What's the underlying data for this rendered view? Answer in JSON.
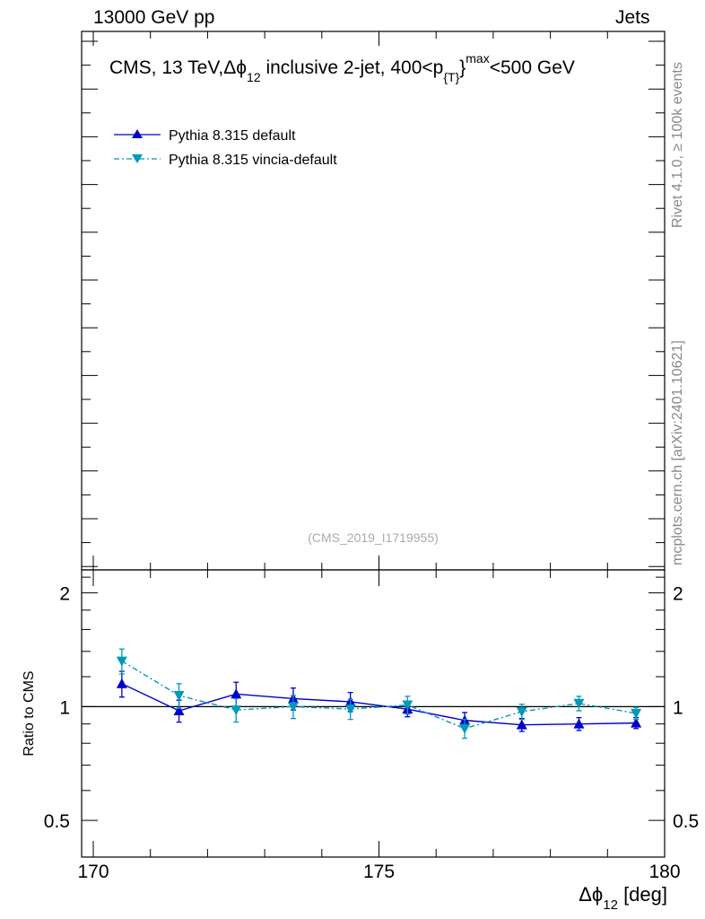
{
  "header": {
    "left": "13000 GeV pp",
    "right": "Jets"
  },
  "side_labels": {
    "top": "Rivet 4.1.0, ≥ 100k events",
    "bottom": "mcplots.cern.ch [arXiv:2401.10621]"
  },
  "watermark": "(CMS_2019_I1719955)",
  "chart_data": {
    "type": "line",
    "title": "CMS, 13 TeV,Δϕ_12 inclusive 2-jet, 400<p_{T}^max<500 GeV",
    "title_parts": {
      "a": "CMS, 13 TeV,",
      "b": "Δϕ",
      "b_sub": "12",
      "c": " inclusive 2-jet, 400<p",
      "c_sub": "{T}",
      "c_sup": "}",
      "c_supmax": "max",
      "d": "<500 GeV"
    },
    "legend": [
      {
        "name": "Pythia 8.315 default",
        "color": "#0000cc",
        "marker": "triangle-up",
        "dash": "solid"
      },
      {
        "name": "Pythia 8.315 vincia-default",
        "color": "#0099bb",
        "marker": "triangle-down",
        "dash": "dash-dot"
      }
    ],
    "ratio_panel": {
      "ylabel": "Ratio to CMS",
      "yscale": "log",
      "ylim": [
        0.4,
        2.3
      ],
      "yticks": [
        0.5,
        1,
        2
      ],
      "ytick_labels": [
        "0.5",
        "1",
        "2"
      ],
      "xlim": [
        170,
        180
      ],
      "xticks": [
        170,
        175,
        180
      ],
      "xtick_labels": [
        "170",
        "175",
        "180"
      ],
      "xlabel": "Δϕ",
      "xlabel_sub": "12",
      "xlabel_unit": " [deg]",
      "reference": 1.0
    },
    "x": [
      170.5,
      171.5,
      172.5,
      173.5,
      174.5,
      175.5,
      176.5,
      177.5,
      178.5,
      179.5
    ],
    "series": [
      {
        "name": "Pythia 8.315 default",
        "values": [
          1.15,
          0.975,
          1.08,
          1.05,
          1.03,
          0.985,
          0.92,
          0.895,
          0.9,
          0.905
        ],
        "err": [
          0.09,
          0.065,
          0.08,
          0.07,
          0.06,
          0.045,
          0.045,
          0.035,
          0.035,
          0.03
        ]
      },
      {
        "name": "Pythia 8.315 vincia-default",
        "values": [
          1.32,
          1.07,
          0.98,
          1.0,
          0.985,
          1.01,
          0.875,
          0.97,
          1.02,
          0.96
        ],
        "err": [
          0.1,
          0.08,
          0.07,
          0.07,
          0.06,
          0.055,
          0.05,
          0.045,
          0.045,
          0.035
        ]
      }
    ]
  }
}
